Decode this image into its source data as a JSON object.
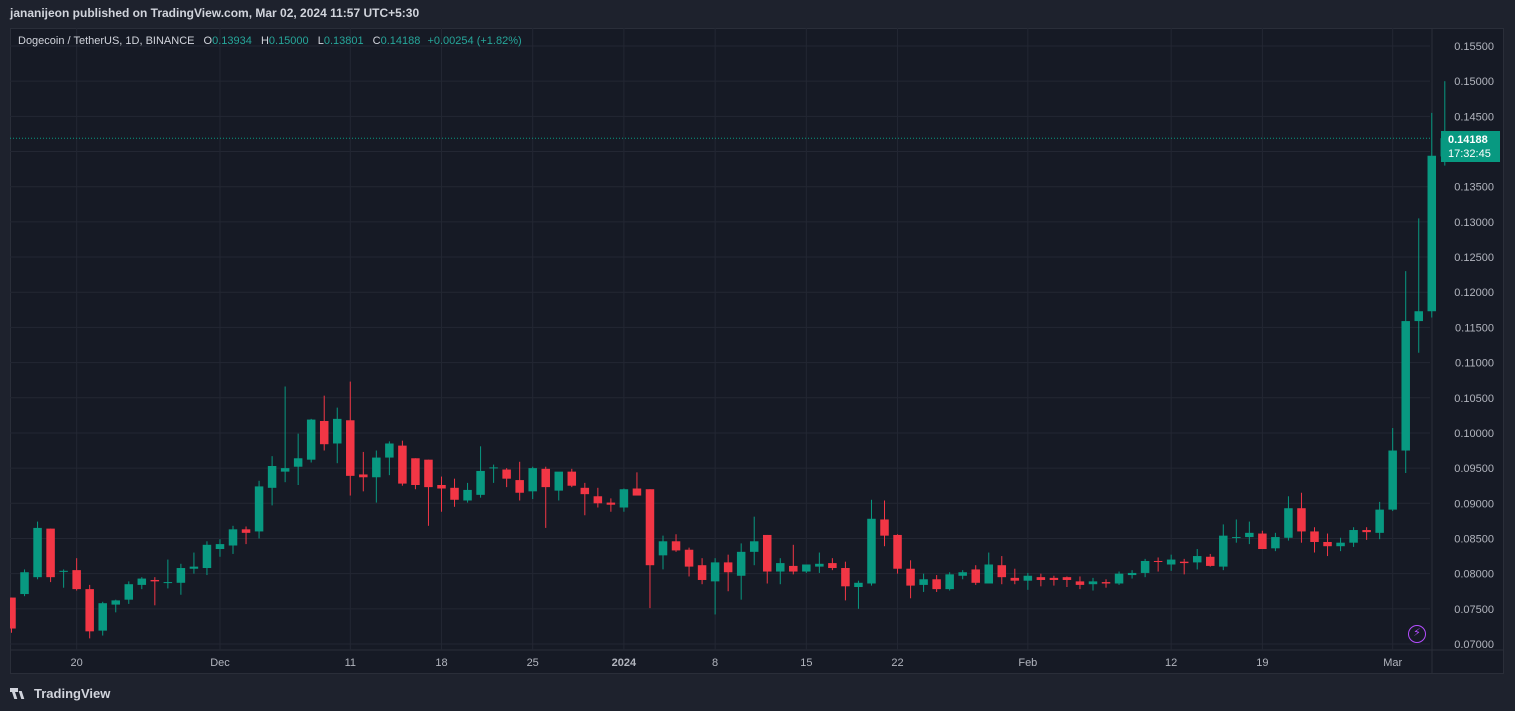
{
  "header": {
    "published_text": "jananijeon published on TradingView.com, Mar 02, 2024 11:57 UTC+5:30"
  },
  "legend": {
    "symbol": "Dogecoin / TetherUS, 1D, BINANCE",
    "o_label": "O",
    "o_value": "0.13934",
    "h_label": "H",
    "h_value": "0.15000",
    "l_label": "L",
    "l_value": "0.13801",
    "c_label": "C",
    "c_value": "0.14188",
    "change": "+0.00254 (+1.82%)"
  },
  "price_badge": {
    "price": "0.14188",
    "countdown": "17:32:45"
  },
  "footer": {
    "logo_text": "TradingView"
  },
  "colors": {
    "up": "#089981",
    "down": "#f23645",
    "background": "#161a25",
    "grid": "#232733",
    "accent_purple": "#b44dff"
  },
  "icons": {
    "logo": "tradingview-logo-icon",
    "flash": "lightning-icon"
  },
  "chart_data": {
    "type": "candlestick",
    "title": "",
    "symbol": "Dogecoin / TetherUS",
    "interval": "1D",
    "exchange": "BINANCE",
    "ylim": [
      0.07,
      0.155
    ],
    "y_ticks": [
      "0.07000",
      "0.07500",
      "0.08000",
      "0.08500",
      "0.09000",
      "0.09500",
      "0.10000",
      "0.10500",
      "0.11000",
      "0.11500",
      "0.12000",
      "0.12500",
      "0.13000",
      "0.13500",
      "0.14000",
      "0.14500",
      "0.15000",
      "0.15500"
    ],
    "x_ticks": [
      {
        "label": "20",
        "bold": false,
        "index": 5
      },
      {
        "label": "Dec",
        "bold": false,
        "index": 16
      },
      {
        "label": "11",
        "bold": false,
        "index": 26
      },
      {
        "label": "18",
        "bold": false,
        "index": 33
      },
      {
        "label": "25",
        "bold": false,
        "index": 40
      },
      {
        "label": "2024",
        "bold": true,
        "index": 47
      },
      {
        "label": "8",
        "bold": false,
        "index": 54
      },
      {
        "label": "15",
        "bold": false,
        "index": 61
      },
      {
        "label": "22",
        "bold": false,
        "index": 68
      },
      {
        "label": "Feb",
        "bold": false,
        "index": 78
      },
      {
        "label": "12",
        "bold": false,
        "index": 89
      },
      {
        "label": "19",
        "bold": false,
        "index": 96
      },
      {
        "label": "Mar",
        "bold": false,
        "index": 106
      }
    ],
    "last_price": 0.14188,
    "candles": [
      [
        0.0766,
        0.0766,
        0.0716,
        0.0722
      ],
      [
        0.0771,
        0.0806,
        0.0768,
        0.0802
      ],
      [
        0.0795,
        0.0874,
        0.0792,
        0.0865
      ],
      [
        0.0864,
        0.0864,
        0.0788,
        0.0795
      ],
      [
        0.0803,
        0.0806,
        0.078,
        0.0804
      ],
      [
        0.0805,
        0.0822,
        0.0776,
        0.0778
      ],
      [
        0.0778,
        0.0784,
        0.0708,
        0.0718
      ],
      [
        0.0719,
        0.076,
        0.0712,
        0.0758
      ],
      [
        0.0756,
        0.0763,
        0.0745,
        0.0762
      ],
      [
        0.0763,
        0.0789,
        0.0757,
        0.0785
      ],
      [
        0.0784,
        0.0795,
        0.0778,
        0.0793
      ],
      [
        0.0791,
        0.0795,
        0.0755,
        0.0789
      ],
      [
        0.0788,
        0.082,
        0.0779,
        0.0788
      ],
      [
        0.0787,
        0.0814,
        0.077,
        0.0808
      ],
      [
        0.0807,
        0.083,
        0.08,
        0.081
      ],
      [
        0.0808,
        0.0846,
        0.0798,
        0.0841
      ],
      [
        0.0835,
        0.0849,
        0.0824,
        0.0842
      ],
      [
        0.084,
        0.0868,
        0.0828,
        0.0863
      ],
      [
        0.0863,
        0.0867,
        0.0842,
        0.0858
      ],
      [
        0.086,
        0.0932,
        0.085,
        0.0924
      ],
      [
        0.0922,
        0.0967,
        0.0897,
        0.0953
      ],
      [
        0.0945,
        0.1066,
        0.093,
        0.095
      ],
      [
        0.0952,
        0.0999,
        0.0926,
        0.0964
      ],
      [
        0.0962,
        0.102,
        0.0958,
        0.1019
      ],
      [
        0.1017,
        0.1053,
        0.0975,
        0.0984
      ],
      [
        0.0985,
        0.1036,
        0.0957,
        0.102
      ],
      [
        0.1018,
        0.1073,
        0.0911,
        0.0939
      ],
      [
        0.0941,
        0.0973,
        0.0917,
        0.0937
      ],
      [
        0.0937,
        0.0975,
        0.0901,
        0.0965
      ],
      [
        0.0965,
        0.0988,
        0.094,
        0.0985
      ],
      [
        0.0982,
        0.0989,
        0.0925,
        0.0928
      ],
      [
        0.0964,
        0.0964,
        0.092,
        0.0926
      ],
      [
        0.0962,
        0.0962,
        0.0868,
        0.0923
      ],
      [
        0.0926,
        0.0938,
        0.0888,
        0.0921
      ],
      [
        0.0922,
        0.0935,
        0.0895,
        0.0905
      ],
      [
        0.0904,
        0.0929,
        0.0901,
        0.0919
      ],
      [
        0.0912,
        0.0981,
        0.0908,
        0.0946
      ],
      [
        0.0951,
        0.0955,
        0.0929,
        0.0951
      ],
      [
        0.0948,
        0.095,
        0.0923,
        0.0935
      ],
      [
        0.0933,
        0.0959,
        0.0904,
        0.0915
      ],
      [
        0.0917,
        0.0952,
        0.0906,
        0.095
      ],
      [
        0.0949,
        0.0952,
        0.0865,
        0.0923
      ],
      [
        0.0918,
        0.0938,
        0.0904,
        0.0945
      ],
      [
        0.0945,
        0.0949,
        0.0923,
        0.0925
      ],
      [
        0.0922,
        0.0929,
        0.0883,
        0.0913
      ],
      [
        0.091,
        0.0922,
        0.0894,
        0.09
      ],
      [
        0.0901,
        0.0907,
        0.0888,
        0.0898
      ],
      [
        0.0894,
        0.0921,
        0.0888,
        0.092
      ],
      [
        0.0921,
        0.0944,
        0.0914,
        0.0911
      ],
      [
        0.092,
        0.092,
        0.0751,
        0.0812
      ],
      [
        0.0826,
        0.0854,
        0.0806,
        0.0846
      ],
      [
        0.0846,
        0.0856,
        0.0831,
        0.0833
      ],
      [
        0.0834,
        0.0837,
        0.0796,
        0.081
      ],
      [
        0.0812,
        0.0822,
        0.0785,
        0.0791
      ],
      [
        0.0789,
        0.0822,
        0.0742,
        0.0816
      ],
      [
        0.0816,
        0.0827,
        0.0775,
        0.0802
      ],
      [
        0.0797,
        0.0843,
        0.0763,
        0.0831
      ],
      [
        0.0831,
        0.0881,
        0.0812,
        0.0846
      ],
      [
        0.0855,
        0.0855,
        0.0786,
        0.0803
      ],
      [
        0.0803,
        0.0822,
        0.0785,
        0.0815
      ],
      [
        0.0811,
        0.0841,
        0.0799,
        0.0803
      ],
      [
        0.0803,
        0.0813,
        0.0801,
        0.0813
      ],
      [
        0.081,
        0.083,
        0.0801,
        0.0814
      ],
      [
        0.0815,
        0.0822,
        0.0805,
        0.0808
      ],
      [
        0.0808,
        0.0817,
        0.0762,
        0.0782
      ],
      [
        0.0781,
        0.079,
        0.075,
        0.0787
      ],
      [
        0.0786,
        0.0905,
        0.0783,
        0.0878
      ],
      [
        0.0877,
        0.0904,
        0.0839,
        0.0854
      ],
      [
        0.0855,
        0.0856,
        0.08,
        0.0807
      ],
      [
        0.0807,
        0.0819,
        0.0765,
        0.0783
      ],
      [
        0.0784,
        0.08,
        0.0774,
        0.0792
      ],
      [
        0.0792,
        0.0798,
        0.0774,
        0.0778
      ],
      [
        0.0778,
        0.0802,
        0.0776,
        0.0799
      ],
      [
        0.0797,
        0.0805,
        0.0792,
        0.0802
      ],
      [
        0.0806,
        0.0812,
        0.0784,
        0.0787
      ],
      [
        0.0786,
        0.083,
        0.0786,
        0.0813
      ],
      [
        0.0812,
        0.0825,
        0.0785,
        0.0795
      ],
      [
        0.0794,
        0.0807,
        0.0785,
        0.079
      ],
      [
        0.079,
        0.0801,
        0.0777,
        0.0797
      ],
      [
        0.0795,
        0.08,
        0.0782,
        0.0791
      ],
      [
        0.0794,
        0.0797,
        0.0783,
        0.0791
      ],
      [
        0.0795,
        0.0796,
        0.0781,
        0.0791
      ],
      [
        0.0789,
        0.0796,
        0.0778,
        0.0784
      ],
      [
        0.0785,
        0.0794,
        0.0776,
        0.0789
      ],
      [
        0.0788,
        0.0792,
        0.078,
        0.0786
      ],
      [
        0.0786,
        0.0803,
        0.0784,
        0.08
      ],
      [
        0.0798,
        0.0805,
        0.0793,
        0.0801
      ],
      [
        0.0801,
        0.0821,
        0.0795,
        0.0818
      ],
      [
        0.0818,
        0.0823,
        0.0803,
        0.0817
      ],
      [
        0.0813,
        0.0827,
        0.0804,
        0.082
      ],
      [
        0.0817,
        0.0821,
        0.0799,
        0.0815
      ],
      [
        0.0816,
        0.0835,
        0.0806,
        0.0825
      ],
      [
        0.0824,
        0.0828,
        0.081,
        0.0811
      ],
      [
        0.081,
        0.087,
        0.0805,
        0.0854
      ],
      [
        0.0852,
        0.0877,
        0.0844,
        0.0852
      ],
      [
        0.0852,
        0.0874,
        0.0842,
        0.0858
      ],
      [
        0.0857,
        0.0861,
        0.0836,
        0.0835
      ],
      [
        0.0836,
        0.0858,
        0.0832,
        0.0852
      ],
      [
        0.0851,
        0.091,
        0.0847,
        0.0893
      ],
      [
        0.0893,
        0.0915,
        0.0844,
        0.086
      ],
      [
        0.086,
        0.0866,
        0.083,
        0.0845
      ],
      [
        0.0845,
        0.0857,
        0.0825,
        0.0839
      ],
      [
        0.0839,
        0.0851,
        0.0832,
        0.0844
      ],
      [
        0.0844,
        0.0866,
        0.0838,
        0.0862
      ],
      [
        0.0862,
        0.0866,
        0.0848,
        0.0859
      ],
      [
        0.0858,
        0.0902,
        0.0849,
        0.0891
      ],
      [
        0.0891,
        0.1007,
        0.0889,
        0.0975
      ],
      [
        0.0975,
        0.123,
        0.0943,
        0.1159
      ],
      [
        0.1159,
        0.1305,
        0.1114,
        0.1173
      ],
      [
        0.1173,
        0.1455,
        0.1164,
        0.1394
      ],
      [
        0.1393,
        0.15,
        0.138,
        0.1419
      ]
    ]
  }
}
